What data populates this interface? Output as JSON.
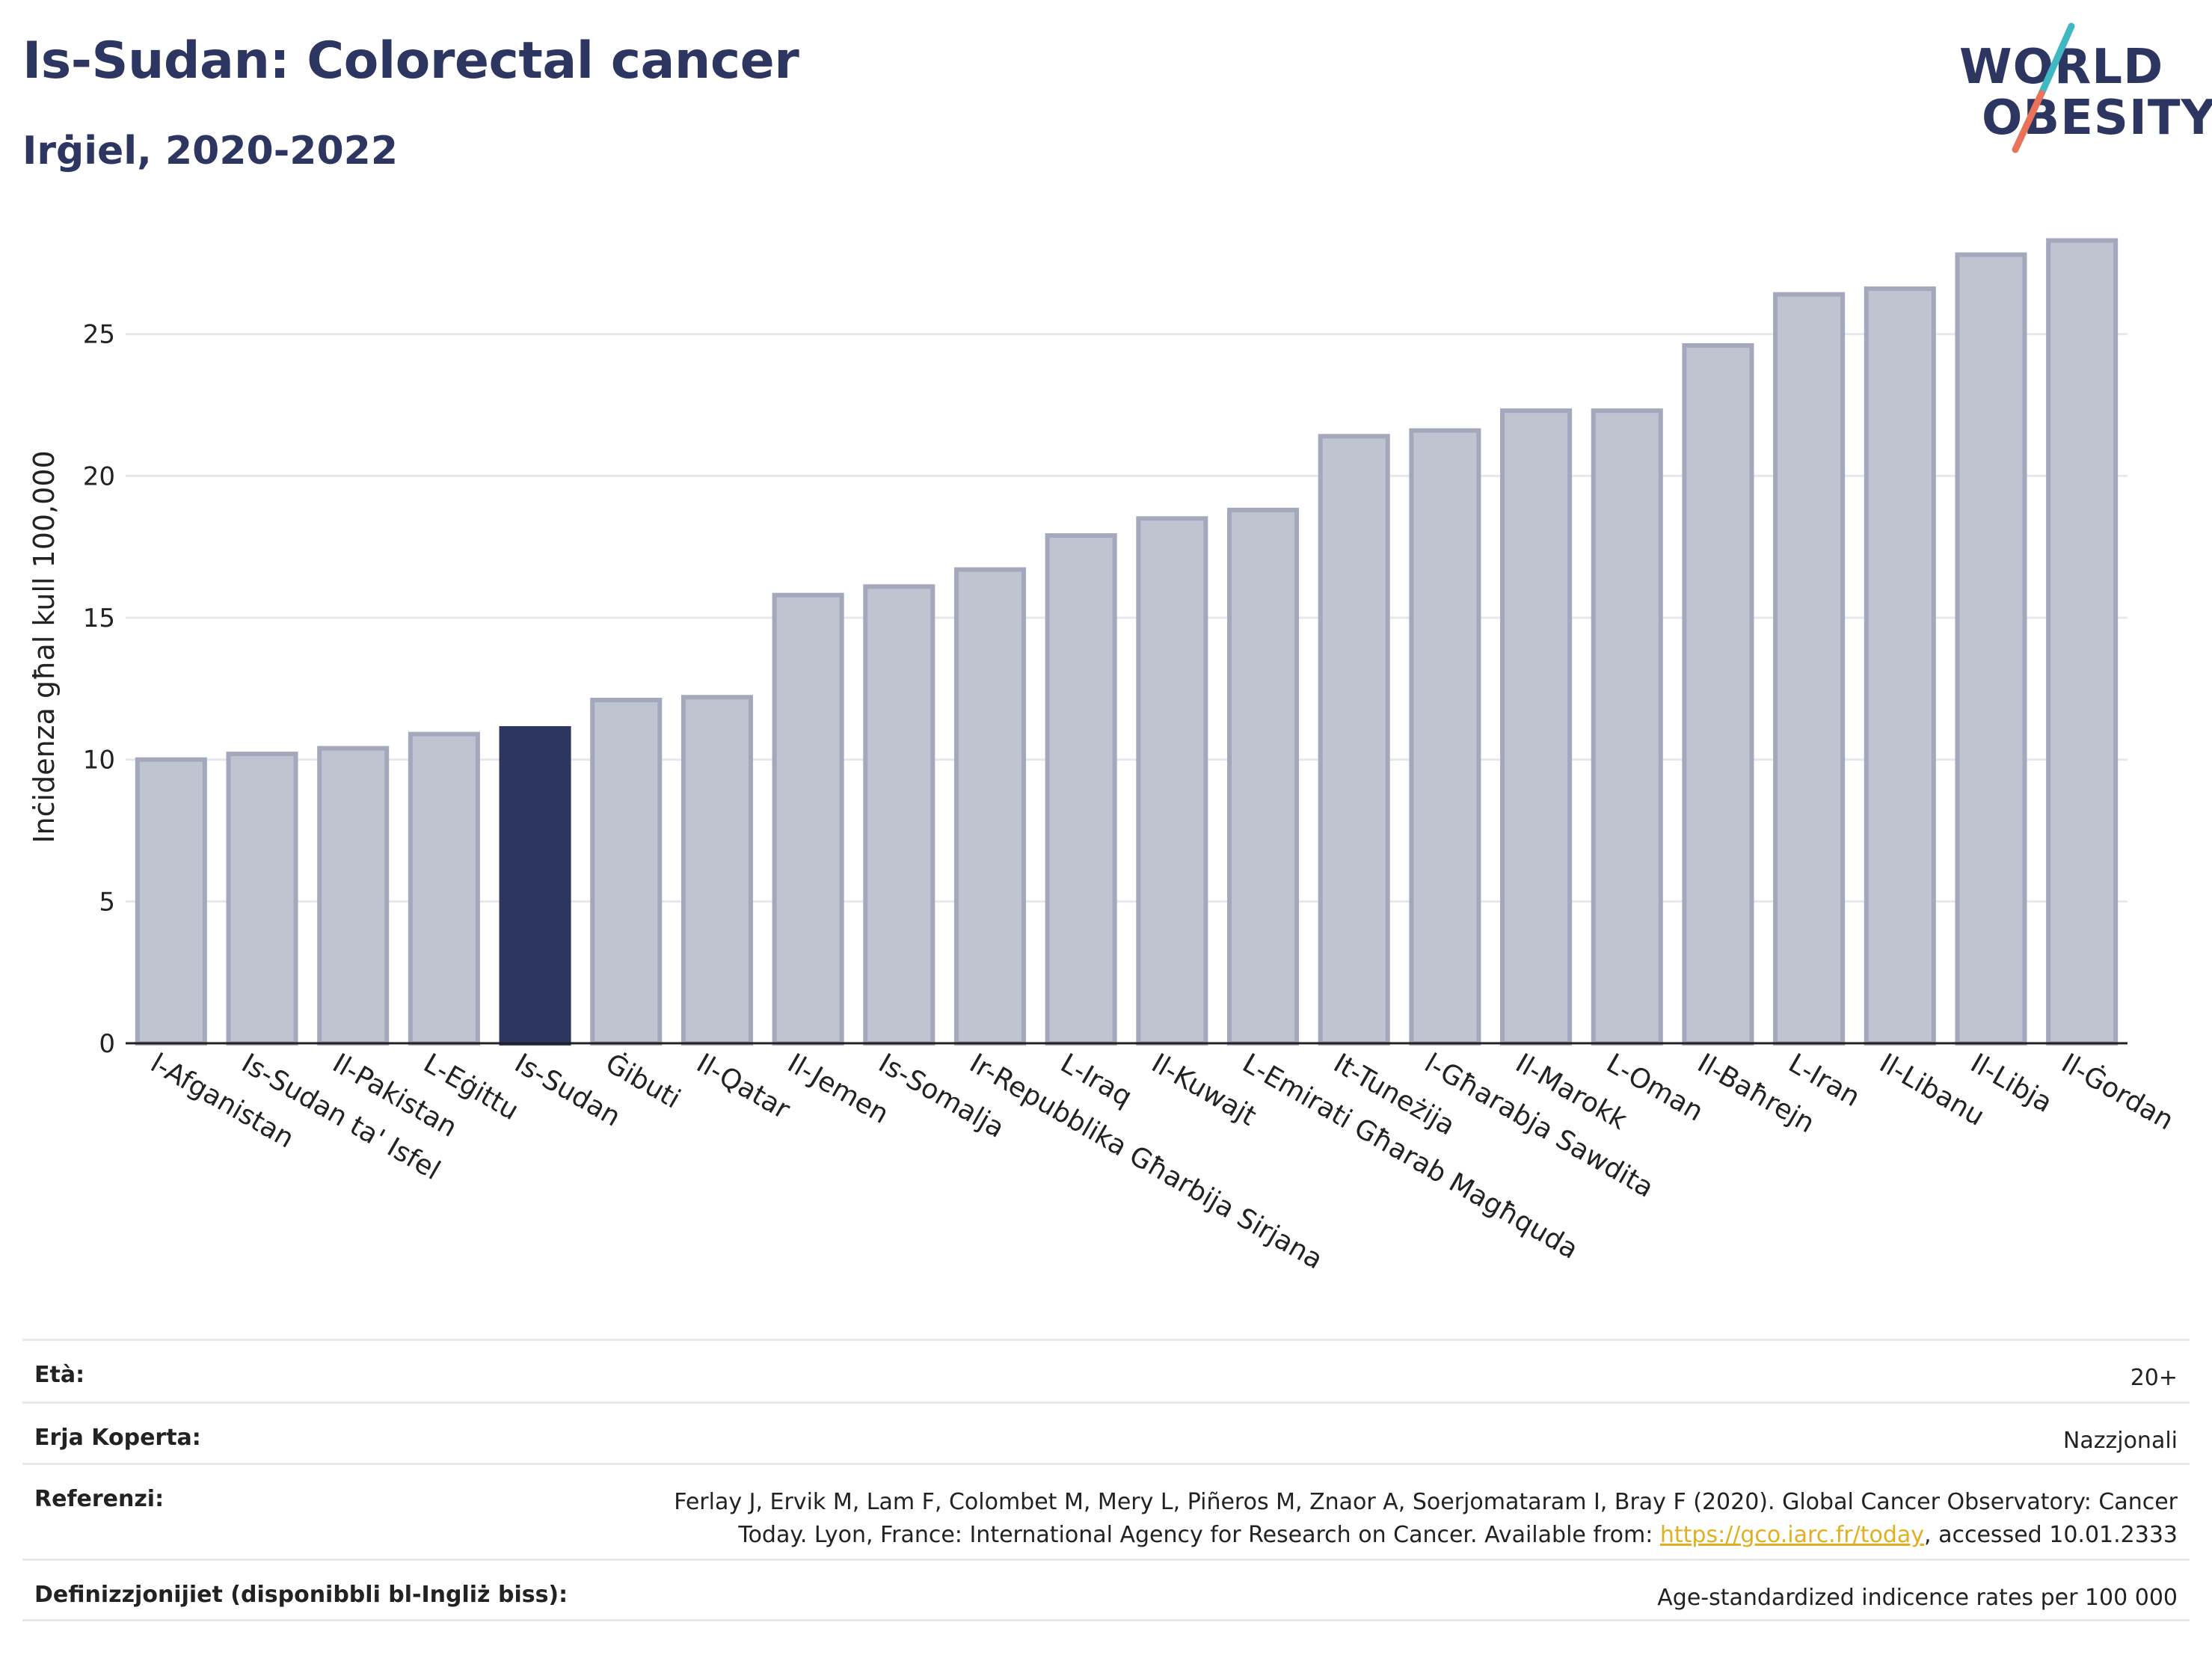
{
  "header": {
    "title": "Is-Sudan: Colorectal cancer",
    "subtitle": "Irġiel, 2020-2022"
  },
  "logo": {
    "line1": "WORLD",
    "line2": "OBESITY",
    "slash_colors": [
      "#3fb8c4",
      "#e8735a"
    ]
  },
  "chart_data": {
    "type": "bar",
    "ylabel": "Inċidenza għal kull 100,000",
    "xlabel": "",
    "ylim": [
      0,
      29
    ],
    "yticks": [
      0,
      5,
      10,
      15,
      20,
      25
    ],
    "grid": true,
    "highlight_category": "Is-Sudan",
    "colors": {
      "bar": "#c0c3d0",
      "bar_border": "#a4a8bc",
      "highlight": "#2d3561",
      "grid": "#e6e8ee"
    },
    "categories": [
      "l-Afganistan",
      "Is-Sudan ta' Isfel",
      "Il-Pakistan",
      "L-Eġittu",
      "Is-Sudan",
      "Ġibuti",
      "Il-Qatar",
      "Il-Jemen",
      "Is-Somalja",
      "Ir-Repubblika Għarbija Sirjana",
      "L-Iraq",
      "Il-Kuwajt",
      "L-Emirati Għarab Magħquda",
      "It-Tuneżija",
      "l-Għarabja Sawdita",
      "Il-Marokk",
      "L-Oman",
      "Il-Baħrejn",
      "L-Iran",
      "Il-Libanu",
      "Il-Libja",
      "Il-Ġordan"
    ],
    "values": [
      10.0,
      10.2,
      10.4,
      10.9,
      11.1,
      12.1,
      12.2,
      15.8,
      16.1,
      16.7,
      17.9,
      18.5,
      18.8,
      21.4,
      21.6,
      22.3,
      22.3,
      24.6,
      26.4,
      26.6,
      27.8,
      28.3
    ]
  },
  "info": {
    "rows": [
      {
        "key": "Età:",
        "value": "20+"
      },
      {
        "key": "Erja Koperta:",
        "value": "Nazzjonali"
      },
      {
        "key": "Referenzi:",
        "value_line1": "Ferlay J, Ervik M, Lam F, Colombet M, Mery L, Piñeros M, Znaor A, Soerjomataram I, Bray F (2020). Global Cancer Observatory: Cancer",
        "value_line2_pre": "Today. Lyon, France: International Agency for Research on Cancer. Available from: ",
        "link": "https://gco.iarc.fr/today",
        "value_line2_post": ", accessed 10.01.2333"
      },
      {
        "key": "Definizzjonijiet (disponibbli bl-Ingliż biss):",
        "value": "Age-standardized indicence rates per 100 000"
      }
    ]
  }
}
